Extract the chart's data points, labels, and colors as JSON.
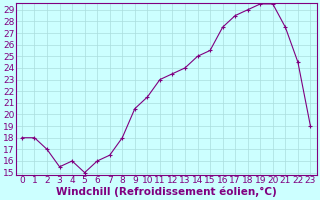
{
  "x": [
    0,
    1,
    2,
    3,
    4,
    5,
    6,
    7,
    8,
    9,
    10,
    11,
    12,
    13,
    14,
    15,
    16,
    17,
    18,
    19,
    20,
    21,
    22,
    23
  ],
  "y": [
    18,
    18,
    17,
    15.5,
    16,
    15,
    16,
    16.5,
    18,
    20.5,
    21.5,
    23,
    23.5,
    24,
    25,
    25.5,
    27.5,
    28.5,
    29,
    29.5,
    29.5,
    27.5,
    24.5,
    19
  ],
  "line_color": "#800080",
  "marker_color": "#800080",
  "bg_color": "#ccffff",
  "grid_color": "#aadddd",
  "xlabel": "Windchill (Refroidissement éolien,°C)",
  "ylim": [
    14.8,
    29.6
  ],
  "xlim": [
    -0.5,
    23.5
  ],
  "yticks": [
    15,
    16,
    17,
    18,
    19,
    20,
    21,
    22,
    23,
    24,
    25,
    26,
    27,
    28,
    29
  ],
  "xticks": [
    0,
    1,
    2,
    3,
    4,
    5,
    6,
    7,
    8,
    9,
    10,
    11,
    12,
    13,
    14,
    15,
    16,
    17,
    18,
    19,
    20,
    21,
    22,
    23
  ],
  "font_color": "#800080",
  "tick_fontsize": 6.5,
  "xlabel_fontsize": 7.5
}
